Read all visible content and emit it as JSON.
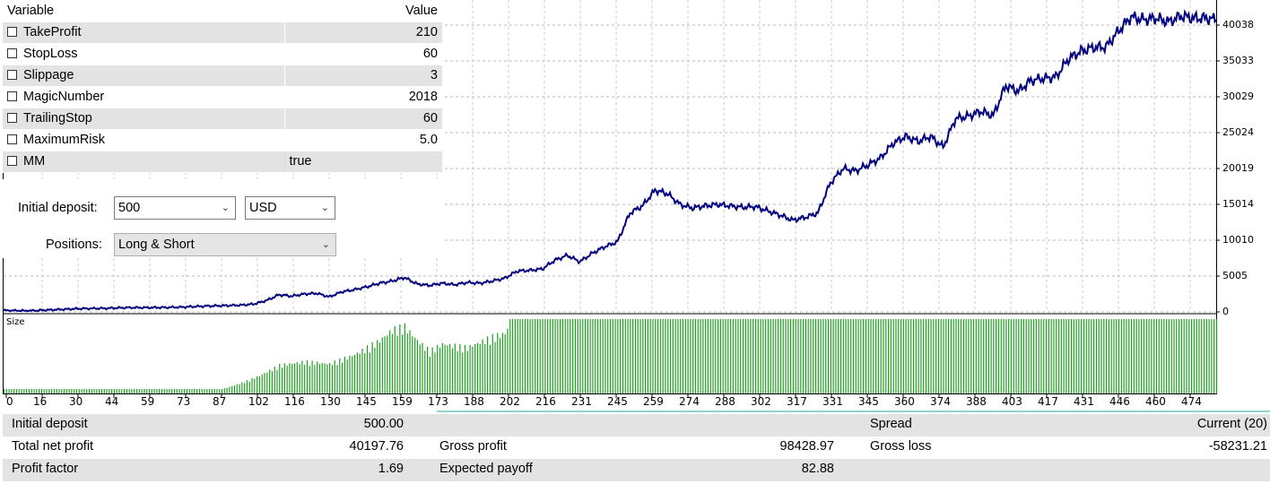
{
  "parameters": {
    "headers": {
      "variable": "Variable",
      "value": "Value"
    },
    "rows": [
      {
        "name": "TakeProfit",
        "value": "210"
      },
      {
        "name": "StopLoss",
        "value": "60"
      },
      {
        "name": "Slippage",
        "value": "3"
      },
      {
        "name": "MagicNumber",
        "value": "2018"
      },
      {
        "name": "TrailingStop",
        "value": "60"
      },
      {
        "name": "MaximumRisk",
        "value": "5.0"
      },
      {
        "name": "MM",
        "value": "true"
      }
    ]
  },
  "settings": {
    "initial_deposit_label": "Initial deposit:",
    "initial_deposit_value": "500",
    "currency_value": "USD",
    "positions_label": "Positions:",
    "positions_value": "Long & Short"
  },
  "chart_data": {
    "type": "line",
    "y_tick_labels": [
      "40038",
      "35033",
      "30029",
      "25024",
      "20019",
      "15014",
      "10010",
      "5005",
      "0"
    ],
    "ylim": [
      0,
      42000
    ],
    "x_tick_labels": [
      "0",
      "16",
      "30",
      "44",
      "59",
      "73",
      "87",
      "102",
      "116",
      "130",
      "145",
      "159",
      "173",
      "188",
      "202",
      "216",
      "231",
      "245",
      "259",
      "274",
      "288",
      "302",
      "317",
      "331",
      "345",
      "360",
      "374",
      "388",
      "403",
      "417",
      "431",
      "446",
      "460",
      "474"
    ],
    "size_label": "Size",
    "line_color": "#000080",
    "bar_color": "#1e9e1e",
    "balance_series": {
      "name": "",
      "x": [
        0,
        10,
        20,
        30,
        40,
        50,
        60,
        70,
        80,
        90,
        95,
        100,
        105,
        110,
        115,
        120,
        125,
        130,
        135,
        140,
        145,
        150,
        155,
        160,
        165,
        170,
        175,
        180,
        185,
        190,
        195,
        200,
        205,
        210,
        215,
        220,
        225,
        230,
        235,
        240,
        245,
        250,
        255,
        260,
        265,
        270,
        275,
        280,
        285,
        290,
        295,
        300,
        305,
        310,
        315,
        320,
        325,
        330,
        335,
        340,
        345,
        350,
        355,
        360,
        365,
        370,
        375,
        380,
        385,
        390,
        395,
        400,
        405,
        410,
        415,
        420,
        425,
        430,
        435,
        440,
        445,
        450,
        455,
        460,
        465,
        470,
        475,
        480,
        484
      ],
      "y": [
        200,
        150,
        300,
        450,
        500,
        600,
        600,
        650,
        800,
        900,
        950,
        1100,
        1600,
        2400,
        2200,
        2500,
        2600,
        2100,
        2800,
        3100,
        3500,
        4000,
        4300,
        4800,
        3900,
        3700,
        4000,
        3800,
        4100,
        4000,
        4300,
        4700,
        5700,
        5800,
        6000,
        7200,
        7900,
        7000,
        8200,
        9100,
        9800,
        13800,
        14800,
        17000,
        16500,
        15000,
        14500,
        14800,
        15000,
        14800,
        14600,
        14700,
        14100,
        13500,
        12800,
        13200,
        13800,
        18000,
        20000,
        19700,
        20500,
        21500,
        23500,
        24500,
        23800,
        24500,
        23000,
        27000,
        27300,
        28000,
        27400,
        31600,
        30800,
        32300,
        32600,
        32800,
        35300,
        36400,
        36900,
        37000,
        39200,
        41200,
        40800,
        41000,
        40500,
        41300,
        41000,
        41000,
        40800
      ]
    },
    "size_bars": {
      "description_levels": [
        [
          0,
          0.06
        ],
        [
          50,
          0.06
        ],
        [
          87,
          0.06
        ],
        [
          95,
          0.15
        ],
        [
          102,
          0.25
        ],
        [
          110,
          0.4
        ],
        [
          120,
          0.45
        ],
        [
          130,
          0.42
        ],
        [
          140,
          0.55
        ],
        [
          150,
          0.75
        ],
        [
          155,
          0.9
        ],
        [
          160,
          0.95
        ],
        [
          165,
          0.75
        ],
        [
          170,
          0.6
        ],
        [
          175,
          0.7
        ],
        [
          185,
          0.65
        ],
        [
          195,
          0.8
        ],
        [
          200,
          0.85
        ],
        [
          202,
          1.0
        ],
        [
          484,
          1.0
        ]
      ]
    }
  },
  "summary": {
    "rows": [
      [
        {
          "label": "Initial deposit",
          "value": "500.00"
        },
        {
          "label": "",
          "value": ""
        },
        {
          "label": "Spread",
          "value": "Current (20)"
        }
      ],
      [
        {
          "label": "Total net profit",
          "value": "40197.76"
        },
        {
          "label": "Gross profit",
          "value": "98428.97"
        },
        {
          "label": "Gross loss",
          "value": "-58231.21"
        }
      ],
      [
        {
          "label": "Profit factor",
          "value": "1.69"
        },
        {
          "label": "Expected payoff",
          "value": "82.88"
        },
        {
          "label": "",
          "value": ""
        }
      ]
    ]
  }
}
